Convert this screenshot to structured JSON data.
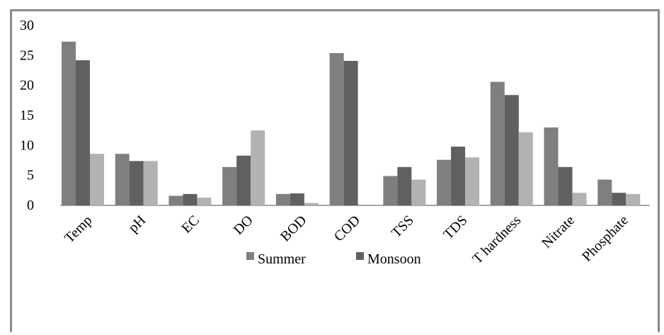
{
  "chart_data": {
    "type": "bar",
    "categories": [
      "Temp",
      "pH",
      "EC",
      "DO",
      "BOD",
      "COD",
      "TSS",
      "TDS",
      "T hardness",
      "Nitrate",
      "Phosphate"
    ],
    "series": [
      {
        "name": "Summer",
        "values": [
          27.3,
          8.6,
          1.6,
          6.4,
          1.9,
          25.4,
          4.9,
          7.6,
          20.6,
          13.0,
          4.3
        ],
        "color": "#7f7f7f"
      },
      {
        "name": "Monsoon",
        "values": [
          24.2,
          7.4,
          1.9,
          8.3,
          2.0,
          24.1,
          6.4,
          9.8,
          18.4,
          6.4,
          2.1
        ],
        "color": "#606060"
      },
      {
        "values": [
          8.6,
          7.4,
          1.3,
          12.5,
          0.4,
          0.0,
          4.3,
          8.0,
          12.2,
          2.1,
          1.9
        ],
        "color": "#b2b2b2"
      }
    ],
    "yticks": [
      0,
      5,
      10,
      15,
      20,
      25,
      30
    ],
    "ylim": [
      0,
      30
    ],
    "legend_position": "bottom"
  }
}
